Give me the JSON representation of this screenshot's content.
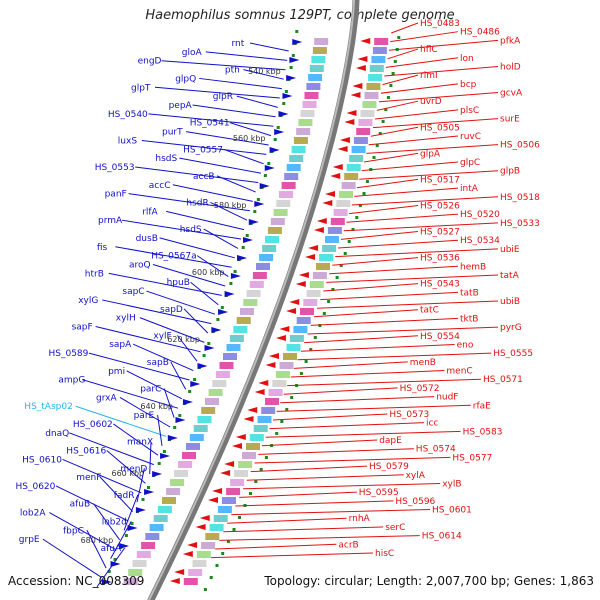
{
  "title": "Haemophilus somnus 129PT, complete genome",
  "accession_text": "Accession: NC_008309",
  "topology_text": "Topology: circular; Length: 2,007,700 bp; Genes: 1,863",
  "colors": {
    "left_genes": "#1010c8",
    "right_genes": "#e01010",
    "trna": "#28b4e6",
    "backbone": "#777777",
    "tick": "#1a8a1a"
  },
  "kbp_markers": [
    "540 kbp",
    "560 kbp",
    "580 kbp",
    "600 kbp",
    "620 kbp",
    "640 kbp",
    "660 kbp",
    "680 kbp"
  ],
  "left_labels": [
    {
      "t": "rnt",
      "c": "b"
    },
    {
      "t": "gloA",
      "c": "b"
    },
    {
      "t": "engD",
      "c": "b"
    },
    {
      "t": "pth",
      "c": "b"
    },
    {
      "t": "glpQ",
      "c": "b"
    },
    {
      "t": "glpT",
      "c": "b"
    },
    {
      "t": "glpR",
      "c": "b"
    },
    {
      "t": "pepA",
      "c": "b"
    },
    {
      "t": "HS_0540",
      "c": "b"
    },
    {
      "t": "HS_0541",
      "c": "b"
    },
    {
      "t": "purT",
      "c": "b"
    },
    {
      "t": "luxS",
      "c": "b"
    },
    {
      "t": "HS_0557",
      "c": "b"
    },
    {
      "t": "hsdS",
      "c": "b"
    },
    {
      "t": "HS_0553",
      "c": "b"
    },
    {
      "t": "accB",
      "c": "b"
    },
    {
      "t": "accC",
      "c": "b"
    },
    {
      "t": "panF",
      "c": "b"
    },
    {
      "t": "hsdR",
      "c": "b"
    },
    {
      "t": "rlfA",
      "c": "b"
    },
    {
      "t": "prmA",
      "c": "b"
    },
    {
      "t": "hsdS",
      "c": "b"
    },
    {
      "t": "dusB",
      "c": "b"
    },
    {
      "t": "fis",
      "c": "b"
    },
    {
      "t": "HS_0567a",
      "c": "b"
    },
    {
      "t": "aroQ",
      "c": "b"
    },
    {
      "t": "htrB",
      "c": "b"
    },
    {
      "t": "hpuB",
      "c": "b"
    },
    {
      "t": "sapC",
      "c": "b"
    },
    {
      "t": "xylG",
      "c": "b"
    },
    {
      "t": "sapD",
      "c": "b"
    },
    {
      "t": "xylH",
      "c": "b"
    },
    {
      "t": "sapF",
      "c": "b"
    },
    {
      "t": "xylF",
      "c": "b"
    },
    {
      "t": "sapA",
      "c": "b"
    },
    {
      "t": "HS_0589",
      "c": "b"
    },
    {
      "t": "sapB",
      "c": "b"
    },
    {
      "t": "pmi",
      "c": "b"
    },
    {
      "t": "ampG",
      "c": "b"
    },
    {
      "t": "parC",
      "c": "b"
    },
    {
      "t": "grxA",
      "c": "b"
    },
    {
      "t": "HS_tAsp02",
      "c": "t"
    },
    {
      "t": "parE",
      "c": "b"
    },
    {
      "t": "HS_0602",
      "c": "b"
    },
    {
      "t": "dnaQ",
      "c": "b"
    },
    {
      "t": "manX",
      "c": "b"
    },
    {
      "t": "HS_0616",
      "c": "b"
    },
    {
      "t": "HS_0610",
      "c": "b"
    },
    {
      "t": "menD",
      "c": "b"
    },
    {
      "t": "menF",
      "c": "b"
    },
    {
      "t": "HS_0620",
      "c": "b"
    },
    {
      "t": "fadR",
      "c": "b"
    },
    {
      "t": "afuB",
      "c": "b"
    },
    {
      "t": "lob2A",
      "c": "b"
    },
    {
      "t": "lob2d",
      "c": "b"
    },
    {
      "t": "fbpC",
      "c": "b"
    },
    {
      "t": "grpE",
      "c": "b"
    },
    {
      "t": "afuA",
      "c": "b"
    }
  ],
  "right_labels": [
    "HS_0483",
    "HS_0486",
    "pfkA",
    "hflC",
    "lon",
    "holD",
    "rimI",
    "bcp",
    "gcvA",
    "uvrD",
    "plsC",
    "surE",
    "HS_0505",
    "ruvC",
    "HS_0506",
    "glpA",
    "glpC",
    "glpB",
    "HS_0517",
    "intA",
    "HS_0518",
    "HS_0526",
    "HS_0520",
    "HS_0533",
    "HS_0527",
    "HS_0534",
    "ubiE",
    "HS_0536",
    "hemB",
    "tatA",
    "HS_0543",
    "tatB",
    "ubiB",
    "tatC",
    "tktB",
    "pyrG",
    "HS_0554",
    "eno",
    "HS_0555",
    "menB",
    "menC",
    "HS_0571",
    "HS_0572",
    "nudF",
    "rfaE",
    "HS_0573",
    "icc",
    "HS_0583",
    "dapE",
    "HS_0574",
    "HS_0577",
    "HS_0579",
    "xylA",
    "xylB",
    "HS_0595",
    "HS_0596",
    "HS_0601",
    "rnhA",
    "serC",
    "HS_0614",
    "acrB",
    "hisC"
  ]
}
